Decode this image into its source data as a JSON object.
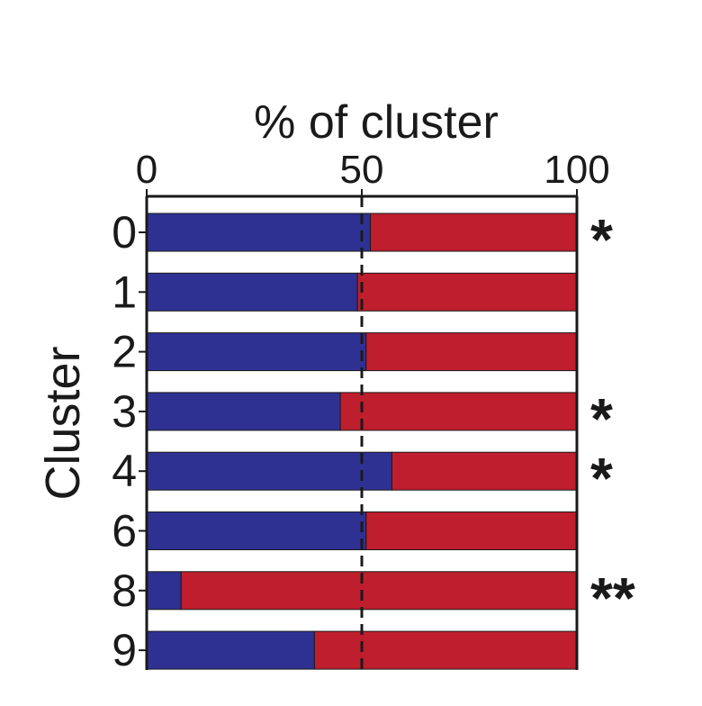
{
  "chart_data": {
    "type": "bar",
    "orientation": "horizontal",
    "stacked": true,
    "title": "",
    "xlabel": "% of cluster",
    "ylabel": "Cluster",
    "xlim": [
      0,
      100
    ],
    "x_ticks": [
      "0",
      "50",
      "100"
    ],
    "x_axis_position": "top",
    "reference_line": {
      "value": 50,
      "style": "dashed"
    },
    "categories": [
      "0",
      "1",
      "2",
      "3",
      "4",
      "6",
      "8",
      "9"
    ],
    "series": [
      {
        "color": "#2e3192",
        "values": [
          52,
          49,
          51,
          45,
          57,
          51,
          8,
          39
        ]
      },
      {
        "color": "#be1e2d",
        "values": [
          48,
          51,
          49,
          55,
          43,
          49,
          92,
          61
        ]
      }
    ],
    "annotations": [
      "*",
      "",
      "",
      "*",
      "*",
      "",
      "**",
      ""
    ],
    "grid": false,
    "legend": "none"
  }
}
